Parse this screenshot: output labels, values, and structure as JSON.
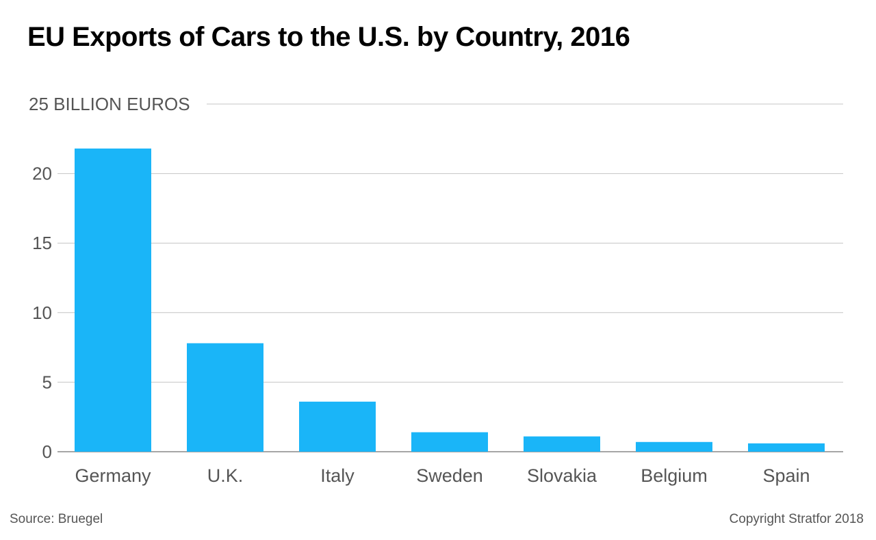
{
  "chart_data": {
    "type": "bar",
    "title": "EU Exports of Cars to the U.S. by Country, 2016",
    "unit_label": "25 BILLION EUROS",
    "categories": [
      "Germany",
      "U.K.",
      "Italy",
      "Sweden",
      "Slovakia",
      "Belgium",
      "Spain"
    ],
    "values": [
      21.8,
      7.8,
      3.6,
      1.4,
      1.1,
      0.7,
      0.6
    ],
    "ylim": [
      0,
      25
    ],
    "yticks": [
      0,
      5,
      10,
      15,
      20
    ],
    "ytick_labels": [
      "0",
      "5",
      "10",
      "15",
      "20"
    ],
    "grid": true,
    "bar_color": "#1ab5f8"
  },
  "footer": {
    "source": "Source: Bruegel",
    "copyright": "Copyright Stratfor 2018"
  }
}
